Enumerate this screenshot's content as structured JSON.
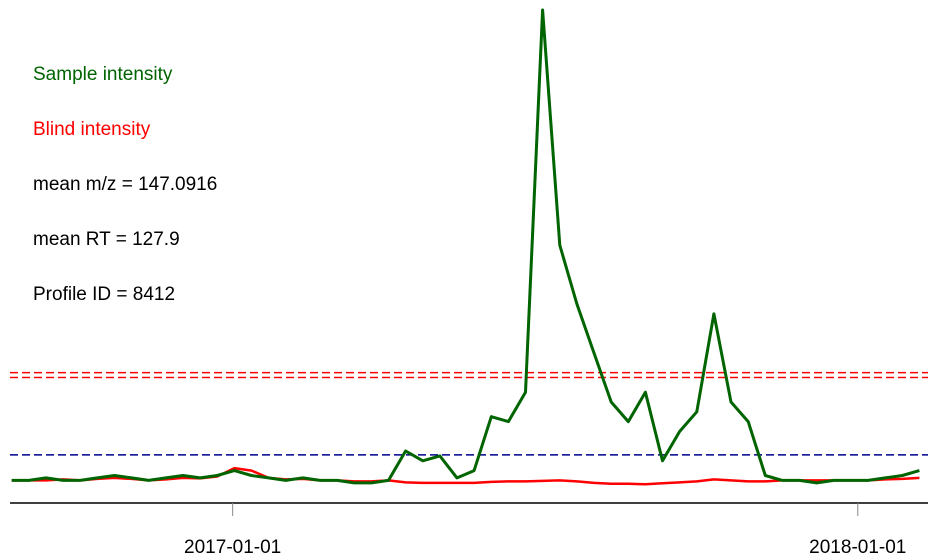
{
  "chart_data": {
    "type": "line",
    "annotations": [
      {
        "text": "Sample intensity",
        "color": "#006400"
      },
      {
        "text": "Blind intensity",
        "color": "#ff0000"
      },
      {
        "text": "mean m/z = 147.0916",
        "color": "#000000"
      },
      {
        "text": "mean RT = 127.9",
        "color": "#000000"
      },
      {
        "text": "Profile ID = 8412",
        "color": "#000000"
      }
    ],
    "x": [
      "2016-08-25",
      "2016-09-04",
      "2016-09-14",
      "2016-09-24",
      "2016-10-04",
      "2016-10-14",
      "2016-10-24",
      "2016-11-03",
      "2016-11-13",
      "2016-11-23",
      "2016-12-03",
      "2016-12-13",
      "2016-12-23",
      "2017-01-02",
      "2017-01-12",
      "2017-01-22",
      "2017-02-01",
      "2017-02-11",
      "2017-02-21",
      "2017-03-03",
      "2017-03-13",
      "2017-03-23",
      "2017-04-02",
      "2017-04-12",
      "2017-04-22",
      "2017-05-02",
      "2017-05-12",
      "2017-05-22",
      "2017-06-01",
      "2017-06-11",
      "2017-06-21",
      "2017-07-01",
      "2017-07-11",
      "2017-07-21",
      "2017-07-31",
      "2017-08-10",
      "2017-08-20",
      "2017-08-30",
      "2017-09-09",
      "2017-09-19",
      "2017-09-29",
      "2017-10-09",
      "2017-10-19",
      "2017-10-29",
      "2017-11-08",
      "2017-11-18",
      "2017-11-28",
      "2017-12-08",
      "2017-12-18",
      "2017-12-28",
      "2018-01-07",
      "2018-01-17",
      "2018-01-27",
      "2018-02-06"
    ],
    "series": [
      {
        "name": "Blind intensity",
        "color": "#ff0000",
        "width": 2.5,
        "values": [
          4,
          4,
          4,
          4.2,
          4,
          4.3,
          4.5,
          4.3,
          4,
          4.2,
          4.5,
          4.4,
          4.8,
          6.5,
          6,
          4.5,
          4.2,
          4.3,
          4,
          4,
          3.8,
          3.8,
          4,
          3.6,
          3.5,
          3.5,
          3.5,
          3.5,
          3.7,
          3.8,
          3.8,
          3.9,
          4,
          3.8,
          3.5,
          3.3,
          3.3,
          3.2,
          3.4,
          3.6,
          3.8,
          4.2,
          4,
          3.8,
          3.8,
          4,
          4,
          4,
          4,
          4,
          4,
          4.2,
          4.3,
          4.5
        ]
      },
      {
        "name": "Sample intensity",
        "color": "#006400",
        "width": 3,
        "values": [
          4,
          4,
          4.5,
          4,
          4,
          4.5,
          5,
          4.5,
          4,
          4.5,
          5,
          4.5,
          5,
          6,
          5,
          4.5,
          4,
          4.5,
          4,
          4,
          3.5,
          3.5,
          4,
          10,
          8,
          9,
          4.5,
          6,
          17,
          16,
          22,
          100,
          52,
          40,
          30,
          20,
          16,
          22,
          8,
          14,
          18,
          38,
          20,
          16,
          5,
          4,
          4,
          3.5,
          4,
          4,
          4,
          4.5,
          5,
          6
        ]
      }
    ],
    "hlines": [
      {
        "value": 26,
        "color": "#ff0000"
      },
      {
        "value": 25,
        "color": "#ff0000"
      },
      {
        "value": 9.2,
        "color": "#00008b"
      }
    ],
    "xlim": [
      "2016-08-24",
      "2018-02-11"
    ],
    "xticks": [
      "2017-01-01",
      "2018-01-01"
    ],
    "ylim": [
      0,
      100
    ]
  }
}
